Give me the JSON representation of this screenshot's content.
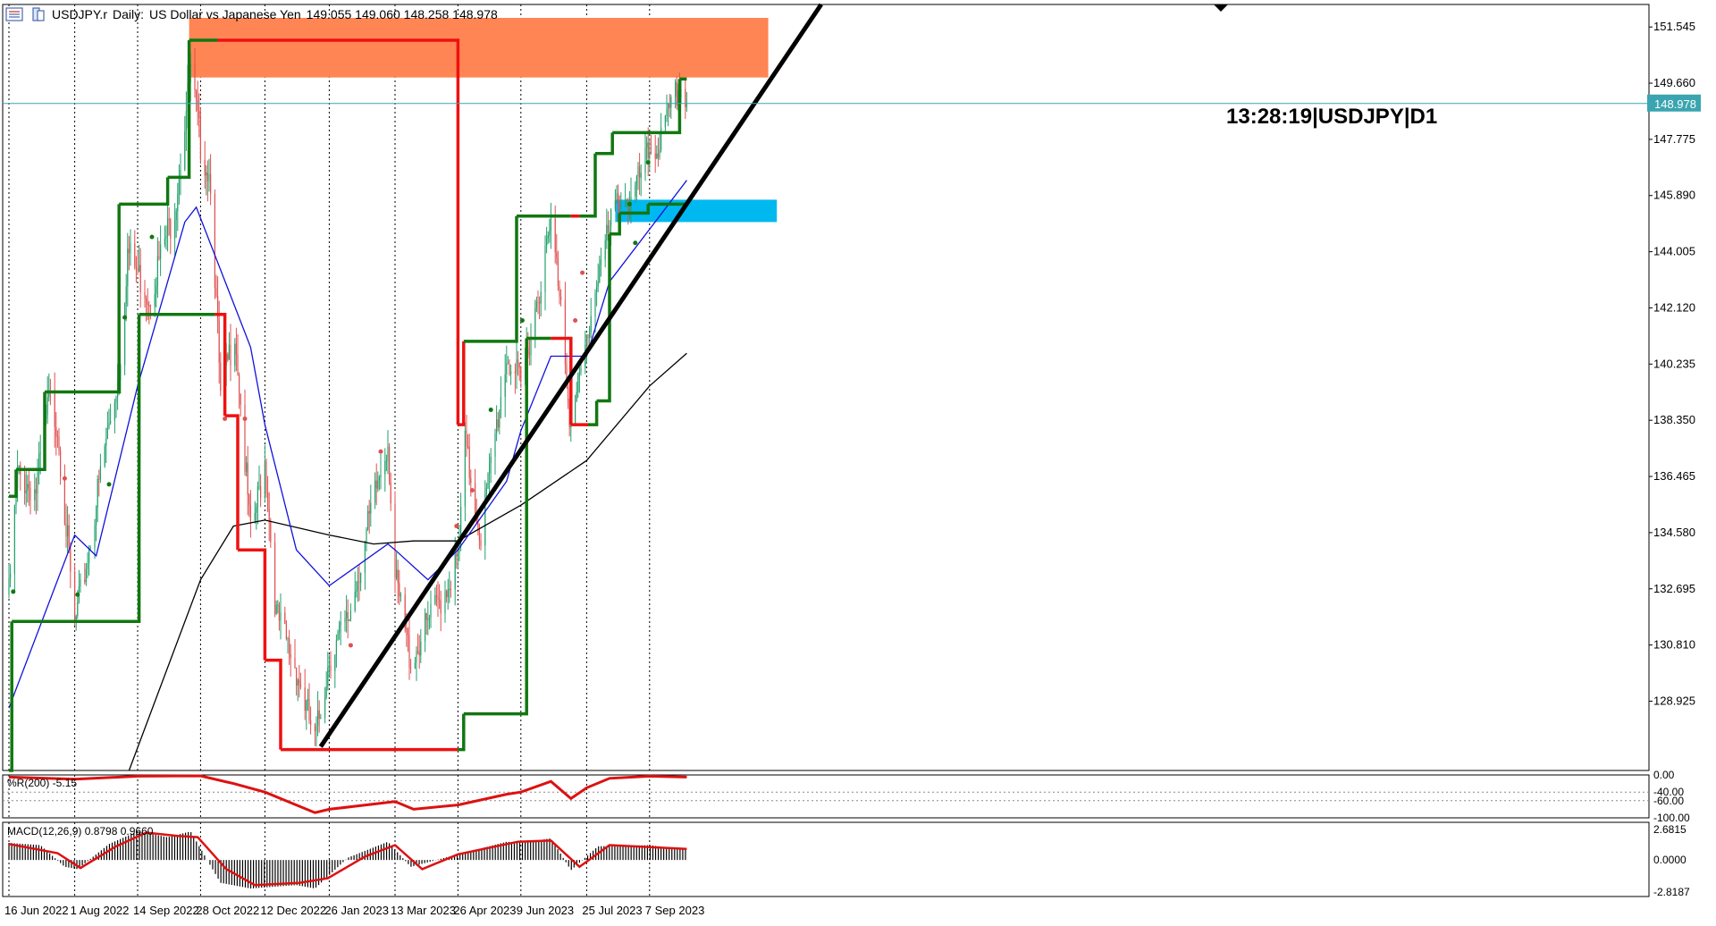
{
  "header": {
    "symbol": "USDJPY.r",
    "timeframe": "Daily:",
    "description": "US Dollar vs Japanese Yen",
    "ohlc": "149.055 149.060 148.258 148.978",
    "icons": [
      "chart-window-icon",
      "symbol-icon"
    ]
  },
  "timestamp_label": "13:28:19|USDJPY|D1",
  "current_price_label": "148.978",
  "colors": {
    "up_candle": "#22a06b",
    "down_candle": "#e05050",
    "ma_fast": "#1111dd",
    "ma_slow": "#000000",
    "donchian_red": "#ee1111",
    "donchian_green": "#117711",
    "trendline": "#000000",
    "supply_zone": "#ff8554",
    "demand_zone": "#00b8f0",
    "macd_signal": "#dd1111",
    "wpr_line": "#dd1111",
    "bid_line": "#3aa5b0",
    "price_badge": "#3aa5b0"
  },
  "chart_data": [
    {
      "type": "candlestick",
      "title": "USDJPY.r, Daily: US Dollar vs Japanese Yen",
      "x_ticks": [
        "16 Jun 2022",
        "1 Aug 2022",
        "14 Sep 2022",
        "28 Oct 2022",
        "12 Dec 2022",
        "26 Jan 2023",
        "13 Mar 2023",
        "26 Apr 2023",
        "9 Jun 2023",
        "25 Jul 2023",
        "7 Sep 2023"
      ],
      "y_ticks": [
        "151.545",
        "149.660",
        "147.775",
        "145.890",
        "144.005",
        "142.120",
        "140.235",
        "138.350",
        "136.465",
        "134.580",
        "132.695",
        "130.810",
        "128.925"
      ],
      "ylim": [
        126.6,
        152.3
      ],
      "last_price": 148.978,
      "ohlc_knots": [
        [
          "16 Jun 2022",
          132.5
        ],
        [
          "22 Jun 2022",
          136.5
        ],
        [
          "5 Jul 2022",
          136.0
        ],
        [
          "14 Jul 2022",
          139.0
        ],
        [
          "20 Jul 2022",
          138.2
        ],
        [
          "1 Aug 2022",
          131.4
        ],
        [
          "9 Aug 2022",
          133.5
        ],
        [
          "22 Aug 2022",
          137.4
        ],
        [
          "1 Sep 2022",
          140.0
        ],
        [
          "7 Sep 2022",
          144.0
        ],
        [
          "22 Sep 2022",
          142.5
        ],
        [
          "10 Oct 2022",
          145.5
        ],
        [
          "21 Oct 2022",
          150.0
        ],
        [
          "28 Oct 2022",
          147.6
        ],
        [
          "4 Nov 2022",
          146.5
        ],
        [
          "11 Nov 2022",
          139.0
        ],
        [
          "21 Nov 2022",
          141.5
        ],
        [
          "2 Dec 2022",
          134.4
        ],
        [
          "12 Dec 2022",
          137.0
        ],
        [
          "20 Dec 2022",
          131.8
        ],
        [
          "3 Jan 2023",
          130.0
        ],
        [
          "16 Jan 2023",
          127.5
        ],
        [
          "26 Jan 2023",
          130.4
        ],
        [
          "8 Feb 2023",
          131.6
        ],
        [
          "2 Mar 2023",
          136.5
        ],
        [
          "8 Mar 2023",
          137.7
        ],
        [
          "13 Mar 2023",
          133.0
        ],
        [
          "24 Mar 2023",
          130.3
        ],
        [
          "5 Apr 2023",
          131.5
        ],
        [
          "26 Apr 2023",
          133.6
        ],
        [
          "1 May 2023",
          137.5
        ],
        [
          "12 May 2023",
          134.5
        ],
        [
          "30 May 2023",
          140.5
        ],
        [
          "9 Jun 2023",
          139.5
        ],
        [
          "16 Jun 2023",
          141.4
        ],
        [
          "30 Jun 2023",
          144.8
        ],
        [
          "7 Jul 2023",
          142.5
        ],
        [
          "14 Jul 2023",
          138.0
        ],
        [
          "25 Jul 2023",
          141.0
        ],
        [
          "2 Aug 2023",
          143.4
        ],
        [
          "10 Aug 2023",
          144.7
        ],
        [
          "17 Aug 2023",
          146.0
        ],
        [
          "25 Aug 2023",
          145.6
        ],
        [
          "7 Sep 2023",
          147.4
        ],
        [
          "14 Sep 2023",
          147.6
        ],
        [
          "28 Sep 2023",
          149.6
        ],
        [
          "3 Oct 2023",
          149.0
        ]
      ],
      "ma_fast_knots": [
        [
          "16 Jun 2022",
          128.7
        ],
        [
          "1 Aug 2022",
          134.5
        ],
        [
          "16 Aug 2022",
          133.8
        ],
        [
          "14 Sep 2022",
          139.5
        ],
        [
          "17 Oct 2022",
          145.0
        ],
        [
          "25 Oct 2022",
          145.5
        ],
        [
          "2 Dec 2022",
          140.8
        ],
        [
          "12 Dec 2022",
          138.2
        ],
        [
          "3 Jan 2023",
          134.0
        ],
        [
          "26 Jan 2023",
          132.8
        ],
        [
          "8 Mar 2023",
          134.2
        ],
        [
          "13 Mar 2023",
          134.0
        ],
        [
          "5 Apr 2023",
          133.0
        ],
        [
          "26 Apr 2023",
          134.0
        ],
        [
          "30 May 2023",
          136.3
        ],
        [
          "9 Jun 2023",
          138.0
        ],
        [
          "30 Jun 2023",
          140.5
        ],
        [
          "25 Jul 2023",
          140.5
        ],
        [
          "10 Aug 2023",
          143.0
        ],
        [
          "14 Sep 2023",
          145.2
        ],
        [
          "3 Oct 2023",
          146.4
        ]
      ],
      "ma_slow_knots": [
        [
          "8 Sep 2022",
          126.6
        ],
        [
          "28 Oct 2022",
          133.0
        ],
        [
          "20 Nov 2022",
          134.8
        ],
        [
          "12 Dec 2022",
          135.0
        ],
        [
          "26 Jan 2023",
          134.5
        ],
        [
          "26 Feb 2023",
          134.2
        ],
        [
          "26 Mar 2023",
          134.3
        ],
        [
          "26 Apr 2023",
          134.3
        ],
        [
          "9 Jun 2023",
          135.5
        ],
        [
          "25 Jul 2023",
          137.0
        ],
        [
          "7 Sep 2023",
          139.5
        ],
        [
          "3 Oct 2023",
          140.6
        ]
      ],
      "donchian_upper": [
        [
          "16 Jun 2022",
          135.8,
          "green"
        ],
        [
          "21 Jun 2022",
          136.7,
          "green"
        ],
        [
          "11 Jul 2022",
          139.3,
          "green"
        ],
        [
          "1 Sep 2022",
          145.6,
          "green"
        ],
        [
          "5 Oct 2022",
          146.5,
          "green"
        ],
        [
          "20 Oct 2022",
          151.1,
          "green"
        ],
        [
          "9 Nov 2022",
          151.1,
          "red"
        ],
        [
          "26 Apr 2023",
          138.2,
          "red"
        ],
        [
          "30 Apr 2023",
          141.0,
          "green"
        ],
        [
          "6 Jun 2023",
          145.2,
          "green"
        ],
        [
          "14 Jul 2023",
          145.2,
          "red"
        ],
        [
          "20 Jul 2023",
          145.2,
          "green"
        ],
        [
          "31 Jul 2023",
          147.3,
          "green"
        ],
        [
          "12 Aug 2023",
          148.0,
          "green"
        ],
        [
          "28 Sep 2023",
          149.8,
          "green"
        ],
        [
          "3 Oct 2023",
          149.8,
          "green"
        ]
      ],
      "donchian_lower": [
        [
          "16 Jun 2022",
          126.6,
          "green"
        ],
        [
          "18 Jun 2022",
          131.6,
          "green"
        ],
        [
          "14 Sep 2022",
          131.6,
          "green"
        ],
        [
          "15 Sep 2022",
          141.9,
          "green"
        ],
        [
          "7 Nov 2022",
          141.9,
          "red"
        ],
        [
          "14 Nov 2022",
          138.5,
          "red"
        ],
        [
          "23 Nov 2022",
          134.0,
          "red"
        ],
        [
          "12 Dec 2022",
          130.3,
          "red"
        ],
        [
          "23 Dec 2022",
          127.3,
          "red"
        ],
        [
          "26 Apr 2023",
          127.3,
          "green"
        ],
        [
          "30 Apr 2023",
          128.5,
          "green"
        ],
        [
          "13 Jun 2023",
          141.1,
          "green"
        ],
        [
          "30 Jun 2023",
          141.1,
          "red"
        ],
        [
          "14 Jul 2023",
          138.2,
          "red"
        ],
        [
          "26 Jul 2023",
          138.2,
          "green"
        ],
        [
          "1 Aug 2023",
          139.0,
          "green"
        ],
        [
          "10 Aug 2023",
          144.6,
          "green"
        ],
        [
          "17 Aug 2023",
          145.3,
          "green"
        ],
        [
          "6 Sep 2023",
          145.6,
          "green"
        ],
        [
          "3 Oct 2023",
          145.6,
          "green"
        ]
      ],
      "trendline": {
        "from": [
          "20 Jan 2023",
          127.4
        ],
        "to": [
          "5 Jan 2024",
          152.3
        ]
      },
      "supply_zone": {
        "from": "20 Oct 2022",
        "to": "29 Nov 2023",
        "low": 149.85,
        "high": 151.85
      },
      "demand_zone": {
        "from": "14 Aug 2023",
        "to": "5 Dec 2023",
        "low": 145.0,
        "high": 145.75
      },
      "signal_dots": [
        [
          "19 Jun 2022",
          132.6,
          "green"
        ],
        [
          "25 Jul 2022",
          136.4,
          "red"
        ],
        [
          "3 Aug 2022",
          132.5,
          "green"
        ],
        [
          "25 Aug 2022",
          136.2,
          "green"
        ],
        [
          "5 Sep 2022",
          141.8,
          "green"
        ],
        [
          "24 Sep 2022",
          144.5,
          "green"
        ],
        [
          "14 Nov 2022",
          138.4,
          "red"
        ],
        [
          "28 Nov 2022",
          138.4,
          "red"
        ],
        [
          "10 Feb 2023",
          130.8,
          "red"
        ],
        [
          "3 Mar 2023",
          137.3,
          "red"
        ],
        [
          "25 Apr 2023",
          134.8,
          "red"
        ],
        [
          "6 May 2023",
          136.0,
          "red"
        ],
        [
          "19 May 2023",
          138.7,
          "green"
        ],
        [
          "10 Jun 2023",
          141.7,
          "green"
        ],
        [
          "17 Jul 2023",
          141.7,
          "red"
        ],
        [
          "22 Jul 2023",
          143.3,
          "red"
        ],
        [
          "28 Aug 2023",
          144.3,
          "green"
        ],
        [
          "24 Aug 2023",
          145.6,
          "green"
        ],
        [
          "6 Sep 2023",
          147.0,
          "green"
        ]
      ]
    },
    {
      "type": "line",
      "title": "%R(200) -5.15",
      "y_ticks": [
        "0.00",
        "-40.00",
        "-60.00",
        "-100.00"
      ],
      "ylim": [
        -100,
        0
      ],
      "last_value": -5.15,
      "knots": [
        [
          "16 Jun 2022",
          -5
        ],
        [
          "1 Aug 2022",
          -10
        ],
        [
          "14 Sep 2022",
          -3
        ],
        [
          "28 Oct 2022",
          -2
        ],
        [
          "20 Nov 2022",
          -20
        ],
        [
          "12 Dec 2022",
          -40
        ],
        [
          "16 Jan 2023",
          -88
        ],
        [
          "26 Jan 2023",
          -80
        ],
        [
          "13 Mar 2023",
          -62
        ],
        [
          "26 Mar 2023",
          -80
        ],
        [
          "26 Apr 2023",
          -70
        ],
        [
          "30 May 2023",
          -45
        ],
        [
          "9 Jun 2023",
          -40
        ],
        [
          "30 Jun 2023",
          -15
        ],
        [
          "14 Jul 2023",
          -55
        ],
        [
          "25 Jul 2023",
          -30
        ],
        [
          "10 Aug 2023",
          -8
        ],
        [
          "7 Sep 2023",
          -3
        ],
        [
          "3 Oct 2023",
          -5
        ]
      ]
    },
    {
      "type": "bar",
      "title": "MACD(12,26,9) 0.8798 0.9660",
      "y_ticks": [
        "2.6815",
        "0.0000",
        "-2.8187"
      ],
      "ylim": [
        -3.2,
        3.3
      ],
      "macd": 0.8798,
      "signal": 0.966,
      "histogram_knots": [
        [
          "16 Jun 2022",
          1.5
        ],
        [
          "8 Jul 2022",
          1.3
        ],
        [
          "25 Jul 2022",
          -0.6
        ],
        [
          "3 Aug 2022",
          -0.8
        ],
        [
          "25 Aug 2022",
          1.4
        ],
        [
          "14 Sep 2022",
          2.5
        ],
        [
          "5 Oct 2022",
          2.0
        ],
        [
          "21 Oct 2022",
          2.5
        ],
        [
          "11 Nov 2022",
          -2.0
        ],
        [
          "2 Dec 2022",
          -2.5
        ],
        [
          "3 Jan 2023",
          -2.2
        ],
        [
          "16 Jan 2023",
          -2.5
        ],
        [
          "8 Feb 2023",
          0.2
        ],
        [
          "8 Mar 2023",
          1.6
        ],
        [
          "24 Mar 2023",
          -0.6
        ],
        [
          "26 Apr 2023",
          0.5
        ],
        [
          "30 May 2023",
          1.6
        ],
        [
          "9 Jun 2023",
          1.5
        ],
        [
          "30 Jun 2023",
          1.9
        ],
        [
          "14 Jul 2023",
          -0.9
        ],
        [
          "2 Aug 2023",
          1.2
        ],
        [
          "7 Sep 2023",
          1.3
        ],
        [
          "3 Oct 2023",
          0.88
        ]
      ],
      "signal_knots": [
        [
          "16 Jun 2022",
          1.4
        ],
        [
          "20 Jul 2022",
          0.6
        ],
        [
          "5 Aug 2022",
          -0.7
        ],
        [
          "30 Aug 2022",
          1.2
        ],
        [
          "20 Sep 2022",
          2.4
        ],
        [
          "12 Oct 2022",
          2.1
        ],
        [
          "26 Oct 2022",
          2.0
        ],
        [
          "15 Nov 2022",
          -0.8
        ],
        [
          "5 Dec 2022",
          -2.2
        ],
        [
          "5 Jan 2023",
          -2.0
        ],
        [
          "25 Jan 2023",
          -1.6
        ],
        [
          "20 Feb 2023",
          0.3
        ],
        [
          "13 Mar 2023",
          1.3
        ],
        [
          "1 Apr 2023",
          -0.8
        ],
        [
          "26 Apr 2023",
          0.5
        ],
        [
          "7 Jun 2023",
          1.6
        ],
        [
          "30 Jun 2023",
          1.7
        ],
        [
          "20 Jul 2023",
          -0.6
        ],
        [
          "10 Aug 2023",
          1.3
        ],
        [
          "3 Oct 2023",
          0.97
        ]
      ]
    }
  ]
}
